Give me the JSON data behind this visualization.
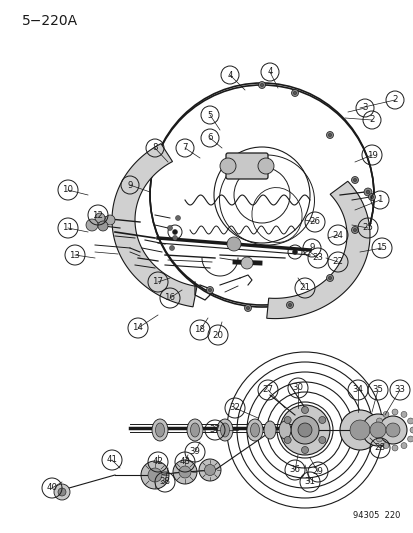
{
  "title": "5−220A",
  "figure_id": "94305  220",
  "bg_color": "#ffffff",
  "line_color": "#1a1a1a",
  "figsize": [
    4.14,
    5.33
  ],
  "dpi": 100
}
